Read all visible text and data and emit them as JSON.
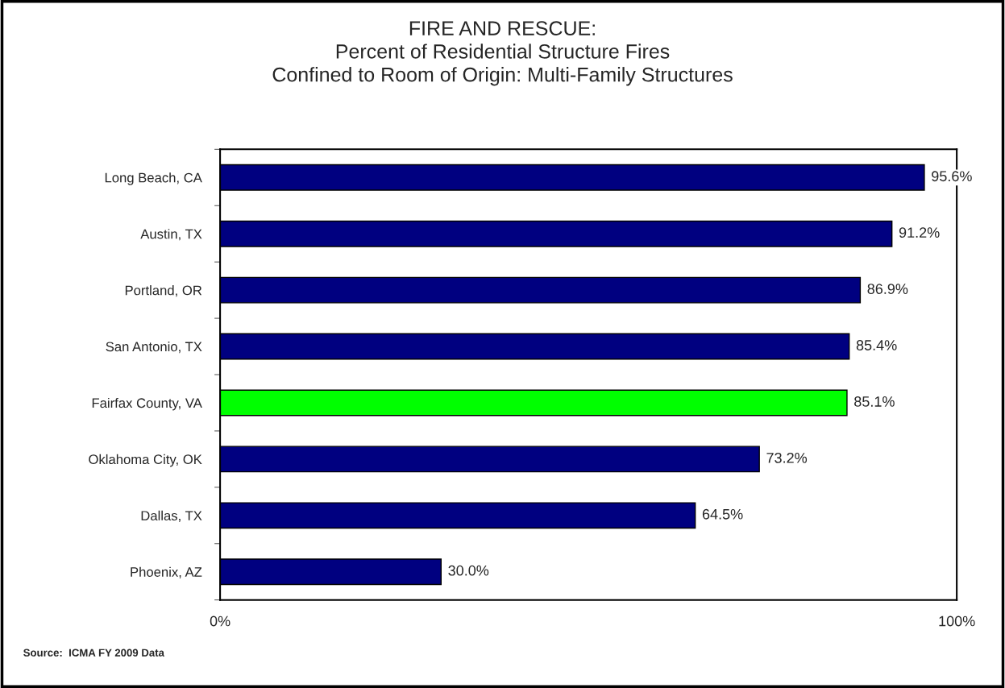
{
  "chart_data": {
    "type": "bar",
    "orientation": "horizontal",
    "title": "FIRE AND RESCUE:\nPercent of Residential Structure Fires\nConfined to Room of Origin: Multi-Family Structures",
    "categories": [
      "Long Beach, CA",
      "Austin, TX",
      "Portland, OR",
      "San Antonio, TX",
      "Fairfax County, VA",
      "Oklahoma City, OK",
      "Dallas, TX",
      "Phoenix, AZ"
    ],
    "values": [
      95.6,
      91.2,
      86.9,
      85.4,
      85.1,
      73.2,
      64.5,
      30.0
    ],
    "colors": [
      "#000080",
      "#000080",
      "#000080",
      "#000080",
      "#00ff00",
      "#000080",
      "#000080",
      "#000080"
    ],
    "value_labels": [
      "95.6%",
      "91.2%",
      "86.9%",
      "85.4%",
      "85.1%",
      "73.2%",
      "64.5%",
      "30.0%"
    ],
    "xlim": [
      0,
      100
    ],
    "xticks": [
      {
        "value": 0,
        "label": "0%"
      },
      {
        "value": 100,
        "label": "100%"
      }
    ],
    "grid": false,
    "legend": false,
    "annotations": [
      "Source:  ICMA FY 2009 Data"
    ]
  }
}
